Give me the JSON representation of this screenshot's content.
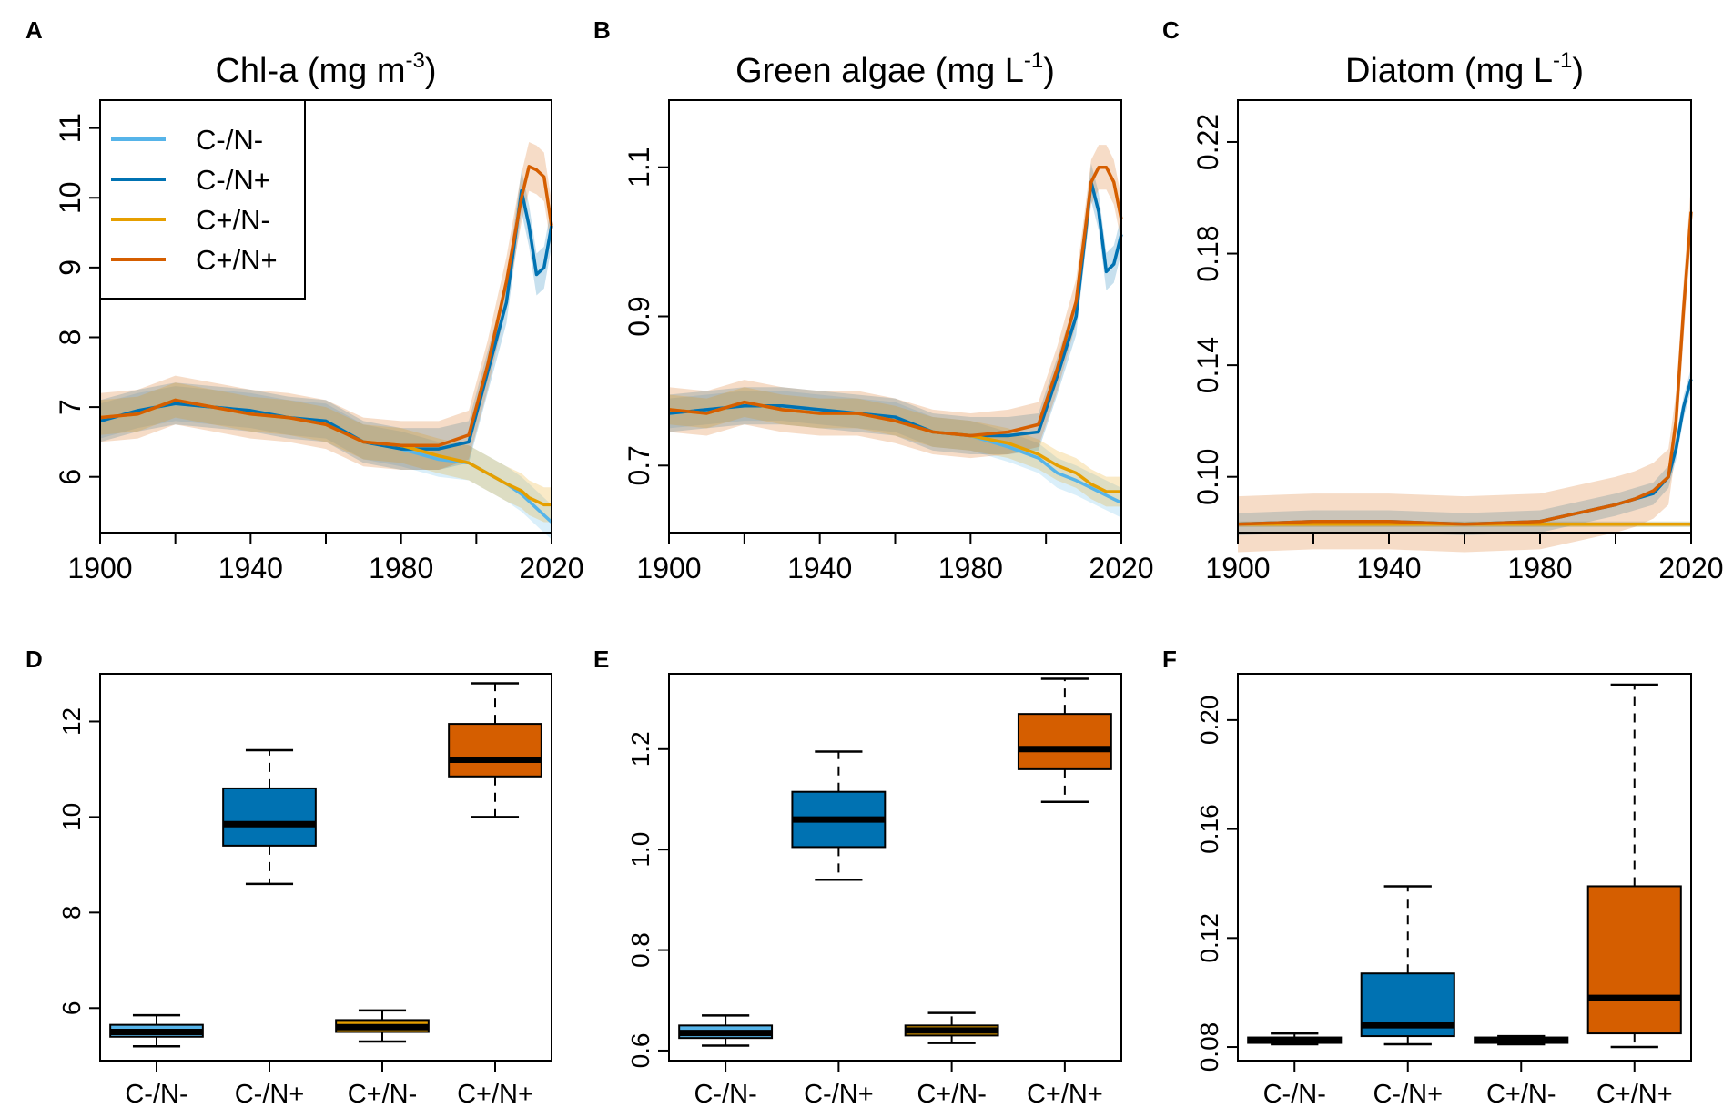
{
  "series_colors": {
    "C-/N-": "#56B4E9",
    "C-/N+": "#0072B2",
    "C+/N-": "#E69F00",
    "C+/N+": "#D55E00"
  },
  "legend": [
    "C-/N-",
    "C-/N+",
    "C+/N-",
    "C+/N+"
  ],
  "chart_data": [
    {
      "panel": "A",
      "type": "line",
      "title": "Chl-a (mg m",
      "title_sup": "-3",
      "title_end": ")",
      "xlabel": "",
      "ylabel": "",
      "xlim": [
        1900,
        2020
      ],
      "ylim": [
        5.2,
        11.4
      ],
      "xticks": [
        1900,
        1920,
        1940,
        1960,
        1980,
        2000,
        2020
      ],
      "xtick_labels": [
        "1900",
        "1940",
        "1980",
        "2020"
      ],
      "yticks": [
        6,
        7,
        8,
        9,
        10,
        11
      ],
      "ytick_labels": [
        "6",
        "7",
        "8",
        "9",
        "10",
        "11"
      ],
      "legend_position": "top-left",
      "x": [
        1900,
        1910,
        1920,
        1930,
        1940,
        1950,
        1960,
        1970,
        1980,
        1990,
        1998,
        2003,
        2008,
        2012,
        2014,
        2016,
        2018,
        2020
      ],
      "series": [
        {
          "name": "C-/N-",
          "values": [
            6.8,
            6.95,
            7.05,
            7.0,
            6.95,
            6.85,
            6.8,
            6.5,
            6.4,
            6.25,
            6.2,
            6.05,
            5.9,
            5.75,
            5.65,
            5.55,
            5.45,
            5.35
          ],
          "band": 0.25
        },
        {
          "name": "C-/N+",
          "values": [
            6.8,
            6.95,
            7.05,
            7.0,
            6.95,
            6.85,
            6.8,
            6.5,
            6.4,
            6.4,
            6.5,
            7.5,
            8.5,
            10.1,
            9.6,
            8.9,
            9.0,
            9.6
          ],
          "band": 0.3
        },
        {
          "name": "C+/N-",
          "values": [
            6.85,
            6.9,
            7.1,
            7.0,
            6.9,
            6.85,
            6.75,
            6.5,
            6.45,
            6.3,
            6.2,
            6.05,
            5.9,
            5.8,
            5.7,
            5.65,
            5.6,
            5.6
          ],
          "band": 0.25
        },
        {
          "name": "C+/N+",
          "values": [
            6.85,
            6.9,
            7.1,
            7.0,
            6.9,
            6.85,
            6.75,
            6.5,
            6.45,
            6.45,
            6.6,
            7.6,
            8.8,
            10.0,
            10.45,
            10.4,
            10.3,
            9.6
          ],
          "band": 0.35
        }
      ]
    },
    {
      "panel": "B",
      "type": "line",
      "title": "Green algae (mg L",
      "title_sup": "-1",
      "title_end": ")",
      "xlabel": "",
      "ylabel": "",
      "xlim": [
        1900,
        2020
      ],
      "ylim": [
        0.61,
        1.19
      ],
      "xticks": [
        1900,
        1920,
        1940,
        1960,
        1980,
        2000,
        2020
      ],
      "xtick_labels": [
        "1900",
        "1940",
        "1980",
        "2020"
      ],
      "yticks": [
        0.7,
        0.9,
        1.1
      ],
      "ytick_labels": [
        "0.7",
        "0.9",
        "1.1"
      ],
      "x": [
        1900,
        1910,
        1920,
        1930,
        1940,
        1950,
        1960,
        1970,
        1980,
        1990,
        1998,
        2003,
        2008,
        2012,
        2014,
        2016,
        2018,
        2020
      ],
      "series": [
        {
          "name": "C-/N-",
          "values": [
            0.77,
            0.775,
            0.78,
            0.78,
            0.775,
            0.77,
            0.765,
            0.745,
            0.74,
            0.725,
            0.71,
            0.69,
            0.68,
            0.67,
            0.665,
            0.66,
            0.655,
            0.65
          ],
          "band": 0.02
        },
        {
          "name": "C-/N+",
          "values": [
            0.77,
            0.775,
            0.78,
            0.78,
            0.775,
            0.77,
            0.765,
            0.745,
            0.74,
            0.74,
            0.745,
            0.82,
            0.9,
            1.08,
            1.04,
            0.96,
            0.97,
            1.01
          ],
          "band": 0.025
        },
        {
          "name": "C+/N-",
          "values": [
            0.775,
            0.77,
            0.785,
            0.775,
            0.77,
            0.77,
            0.76,
            0.745,
            0.74,
            0.73,
            0.715,
            0.7,
            0.69,
            0.675,
            0.67,
            0.665,
            0.665,
            0.665
          ],
          "band": 0.02
        },
        {
          "name": "C+/N+",
          "values": [
            0.775,
            0.77,
            0.785,
            0.775,
            0.77,
            0.77,
            0.76,
            0.745,
            0.74,
            0.745,
            0.755,
            0.83,
            0.92,
            1.08,
            1.1,
            1.1,
            1.08,
            1.03
          ],
          "band": 0.03
        }
      ]
    },
    {
      "panel": "C",
      "type": "line",
      "title": "Diatom (mg L",
      "title_sup": "-1",
      "title_end": ")",
      "xlabel": "",
      "ylabel": "",
      "xlim": [
        1900,
        2020
      ],
      "ylim": [
        0.08,
        0.235
      ],
      "xticks": [
        1900,
        1920,
        1940,
        1960,
        1980,
        2000,
        2020
      ],
      "xtick_labels": [
        "1900",
        "1940",
        "1980",
        "2020"
      ],
      "yticks": [
        0.1,
        0.14,
        0.18,
        0.22
      ],
      "ytick_labels": [
        "0.10",
        "0.14",
        "0.18",
        "0.22"
      ],
      "x": [
        1900,
        1920,
        1940,
        1960,
        1980,
        1990,
        2000,
        2005,
        2010,
        2014,
        2016,
        2018,
        2020
      ],
      "series": [
        {
          "name": "C-/N-",
          "values": [
            0.083,
            0.083,
            0.083,
            0.083,
            0.083,
            0.083,
            0.083,
            0.083,
            0.083,
            0.083,
            0.083,
            0.083,
            0.083
          ],
          "band": 0.001
        },
        {
          "name": "C-/N+",
          "values": [
            0.083,
            0.084,
            0.084,
            0.083,
            0.084,
            0.087,
            0.09,
            0.092,
            0.094,
            0.1,
            0.11,
            0.125,
            0.135
          ],
          "band": 0.004
        },
        {
          "name": "C+/N-",
          "values": [
            0.083,
            0.083,
            0.083,
            0.083,
            0.083,
            0.083,
            0.083,
            0.083,
            0.083,
            0.083,
            0.083,
            0.083,
            0.083
          ],
          "band": 0.001
        },
        {
          "name": "C+/N+",
          "values": [
            0.083,
            0.084,
            0.084,
            0.083,
            0.084,
            0.087,
            0.09,
            0.092,
            0.095,
            0.1,
            0.12,
            0.16,
            0.195
          ],
          "band": 0.01
        }
      ]
    },
    {
      "panel": "D",
      "type": "box",
      "title": "",
      "xlabel": "",
      "ylabel": "",
      "ylim": [
        4.9,
        13.0
      ],
      "yticks": [
        6,
        8,
        10,
        12
      ],
      "ytick_labels": [
        "6",
        "8",
        "10",
        "12"
      ],
      "categories": [
        "C-/N-",
        "C-/N+",
        "C+/N-",
        "C+/N+"
      ],
      "boxes": [
        {
          "name": "C-/N-",
          "min": 5.2,
          "q1": 5.4,
          "median": 5.5,
          "q3": 5.65,
          "max": 5.85
        },
        {
          "name": "C-/N+",
          "min": 8.6,
          "q1": 9.4,
          "median": 9.85,
          "q3": 10.6,
          "max": 11.4
        },
        {
          "name": "C+/N-",
          "min": 5.3,
          "q1": 5.5,
          "median": 5.6,
          "q3": 5.75,
          "max": 5.95
        },
        {
          "name": "C+/N+",
          "min": 10.0,
          "q1": 10.85,
          "median": 11.2,
          "q3": 11.95,
          "max": 12.8
        }
      ]
    },
    {
      "panel": "E",
      "type": "box",
      "title": "",
      "xlabel": "",
      "ylabel": "",
      "ylim": [
        0.58,
        1.35
      ],
      "yticks": [
        0.6,
        0.8,
        1.0,
        1.2
      ],
      "ytick_labels": [
        "0.6",
        "0.8",
        "1.0",
        "1.2"
      ],
      "categories": [
        "C-/N-",
        "C-/N+",
        "C+/N-",
        "C+/N+"
      ],
      "boxes": [
        {
          "name": "C-/N-",
          "min": 0.61,
          "q1": 0.625,
          "median": 0.635,
          "q3": 0.65,
          "max": 0.67
        },
        {
          "name": "C-/N+",
          "min": 0.94,
          "q1": 1.005,
          "median": 1.06,
          "q3": 1.115,
          "max": 1.195
        },
        {
          "name": "C+/N-",
          "min": 0.615,
          "q1": 0.63,
          "median": 0.64,
          "q3": 0.65,
          "max": 0.675
        },
        {
          "name": "C+/N+",
          "min": 1.095,
          "q1": 1.16,
          "median": 1.2,
          "q3": 1.27,
          "max": 1.34
        }
      ]
    },
    {
      "panel": "F",
      "type": "box",
      "title": "",
      "xlabel": "",
      "ylabel": "",
      "ylim": [
        0.075,
        0.217
      ],
      "yticks": [
        0.08,
        0.12,
        0.16,
        0.2
      ],
      "ytick_labels": [
        "0.08",
        "0.12",
        "0.16",
        "0.20"
      ],
      "categories": [
        "C-/N-",
        "C-/N+",
        "C+/N-",
        "C+/N+"
      ],
      "boxes": [
        {
          "name": "C-/N-",
          "min": 0.081,
          "q1": 0.0815,
          "median": 0.0825,
          "q3": 0.0835,
          "max": 0.085
        },
        {
          "name": "C-/N+",
          "min": 0.081,
          "q1": 0.084,
          "median": 0.088,
          "q3": 0.107,
          "max": 0.139
        },
        {
          "name": "C+/N-",
          "min": 0.081,
          "q1": 0.0815,
          "median": 0.0825,
          "q3": 0.0835,
          "max": 0.084
        },
        {
          "name": "C+/N+",
          "min": 0.08,
          "q1": 0.085,
          "median": 0.098,
          "q3": 0.139,
          "max": 0.213
        }
      ]
    }
  ]
}
